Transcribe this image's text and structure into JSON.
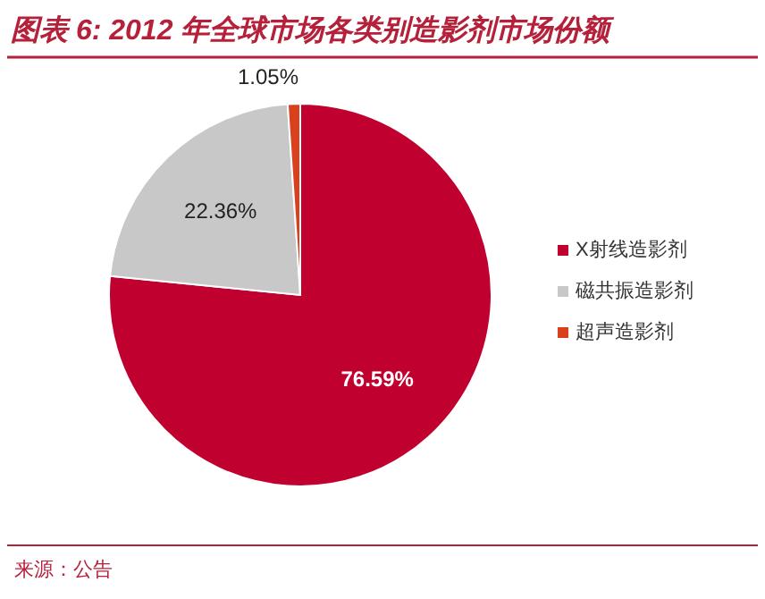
{
  "chart_data": {
    "type": "pie",
    "title": "图表 6:  2012 年全球市场各类别造影剂市场份额",
    "categories": [
      "X射线造影剂",
      "磁共振造影剂",
      "超声造影剂"
    ],
    "values": [
      76.59,
      22.36,
      1.05
    ],
    "colors": [
      "#c0002f",
      "#c8c8c8",
      "#d9411e"
    ],
    "value_labels": [
      "76.59%",
      "22.36%",
      "1.05%"
    ],
    "legend": "right",
    "annotations": [
      "来源：公告"
    ]
  }
}
